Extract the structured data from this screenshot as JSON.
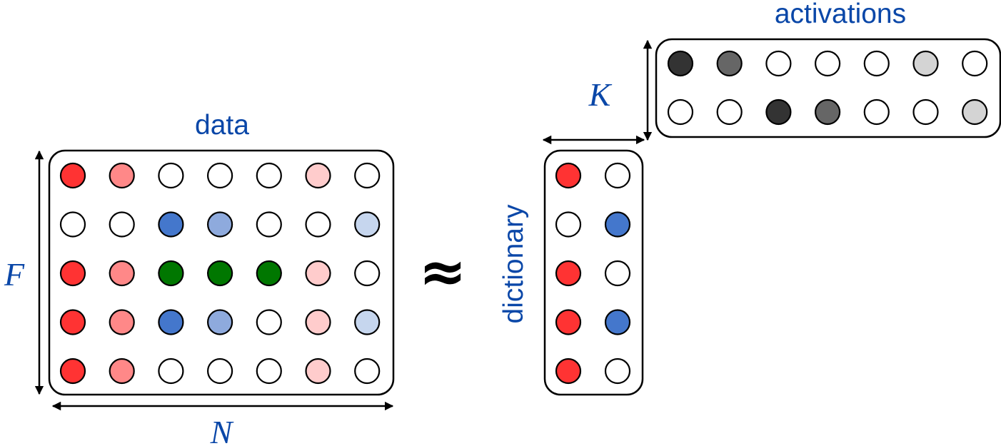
{
  "labels": {
    "data": "data",
    "activations": "activations",
    "dictionary": "dictionary",
    "approx": "≈"
  },
  "math": {
    "F": "F",
    "N": "N",
    "K": "K"
  },
  "colors": {
    "label": "#0a47a8",
    "red": "#ff3333",
    "red_mid": "#ff8888",
    "red_light": "#ffcccc",
    "blue": "#4477cc",
    "blue_mid": "#8eaadd",
    "blue_light": "#c6d6ee",
    "green": "#007700",
    "black": "#333333",
    "gray": "#666666",
    "gray_light": "#d4d4d4",
    "white": "#ffffff"
  },
  "data_matrix": [
    [
      "red",
      "red_mid",
      "white",
      "white",
      "white",
      "red_light",
      "white"
    ],
    [
      "white",
      "white",
      "blue",
      "blue_mid",
      "white",
      "white",
      "blue_light"
    ],
    [
      "red",
      "red_mid",
      "green",
      "green",
      "green",
      "red_light",
      "white"
    ],
    [
      "red",
      "red_mid",
      "blue",
      "blue_mid",
      "white",
      "red_light",
      "blue_light"
    ],
    [
      "red",
      "red_mid",
      "white",
      "white",
      "white",
      "red_light",
      "white"
    ]
  ],
  "dictionary_matrix": [
    [
      "red",
      "white"
    ],
    [
      "white",
      "blue"
    ],
    [
      "red",
      "white"
    ],
    [
      "red",
      "blue"
    ],
    [
      "red",
      "white"
    ]
  ],
  "activations_matrix": [
    [
      "black",
      "gray",
      "white",
      "white",
      "white",
      "gray_light",
      "white"
    ],
    [
      "white",
      "white",
      "black",
      "gray",
      "white",
      "white",
      "gray_light"
    ]
  ]
}
